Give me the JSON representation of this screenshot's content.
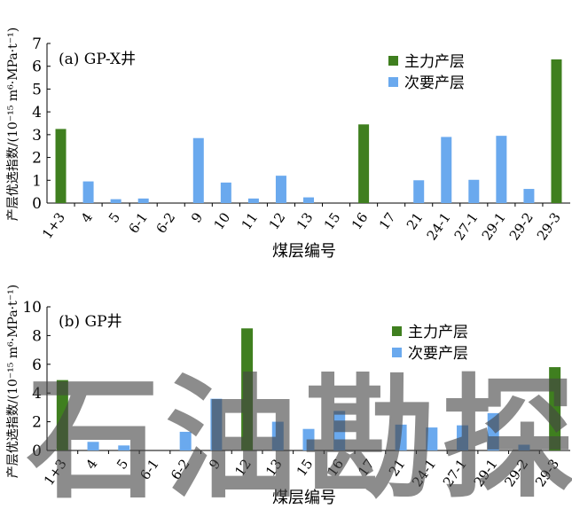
{
  "chart_data": [
    {
      "type": "bar",
      "title": "(a) GP-X井",
      "xlabel": "煤层编号",
      "ylabel": "产层优选指数/(10⁻¹⁵ m⁶·MPa·t⁻¹)",
      "ylim": [
        0,
        7
      ],
      "yticks": [
        "0",
        "1",
        "2",
        "3",
        "4",
        "5",
        "6",
        "7"
      ],
      "grid": false,
      "legend_position": "top-right",
      "categories": [
        "1+3",
        "4",
        "5",
        "6-1",
        "6-2",
        "9",
        "10",
        "11",
        "12",
        "13",
        "15",
        "16",
        "17",
        "21",
        "24-1",
        "27-1",
        "29-1",
        "29-2",
        "29-3"
      ],
      "series": [
        {
          "name": "主力产层",
          "color": "#3f7f1f",
          "values": [
            3.25,
            0,
            0,
            0,
            0,
            0,
            0,
            0,
            0,
            0,
            0,
            3.45,
            0,
            0,
            0,
            0,
            0,
            0,
            6.3
          ]
        },
        {
          "name": "次要产层",
          "color": "#6aa9ee",
          "values": [
            0,
            0.95,
            0.17,
            0.2,
            0,
            2.85,
            0.9,
            0.2,
            1.2,
            0.25,
            0,
            0,
            0,
            1.0,
            2.9,
            1.02,
            2.95,
            0.62,
            0
          ]
        }
      ]
    },
    {
      "type": "bar",
      "title": "(b) GP井",
      "xlabel": "煤层编号",
      "ylabel": "产层优选指数/(10⁻¹⁵ m⁶·MPa·t⁻¹)",
      "ylim": [
        0,
        10
      ],
      "yticks": [
        "0",
        "2",
        "4",
        "6",
        "8",
        "10"
      ],
      "grid": false,
      "legend_position": "top-right",
      "categories": [
        "1+3",
        "4",
        "5",
        "6-1",
        "6-2",
        "9",
        "12",
        "13",
        "15",
        "16",
        "17",
        "21",
        "24-1",
        "27-1",
        "29-1",
        "29-2",
        "29-3"
      ],
      "series": [
        {
          "name": "主力产层",
          "color": "#3f7f1f",
          "values": [
            4.9,
            0,
            0,
            0,
            0,
            0,
            8.5,
            0,
            0,
            0,
            0,
            0,
            0,
            0,
            0,
            0,
            5.8
          ]
        },
        {
          "name": "次要产层",
          "color": "#6aa9ee",
          "values": [
            0,
            0.6,
            0.35,
            0,
            1.3,
            3.6,
            0,
            2.0,
            1.5,
            2.75,
            0,
            1.8,
            1.6,
            1.75,
            2.6,
            0.4,
            0
          ]
        }
      ]
    }
  ],
  "watermark": "石油勘探"
}
